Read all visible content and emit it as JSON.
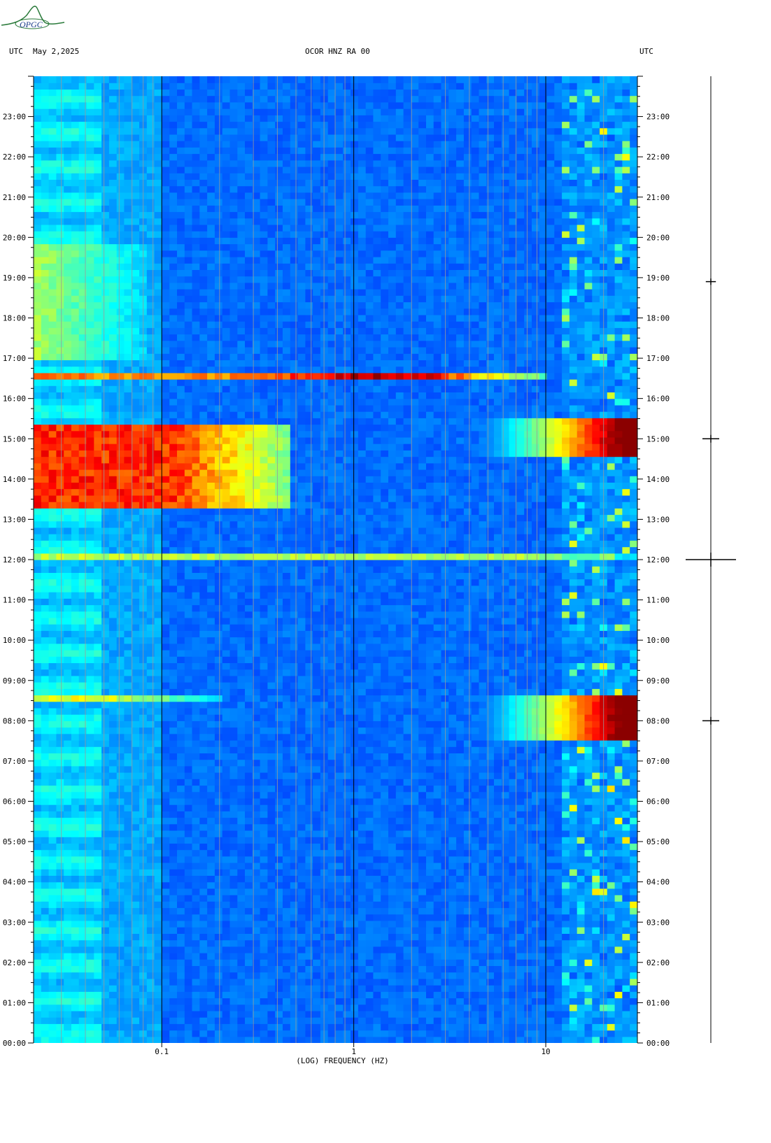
{
  "header": {
    "left_utc": "UTC",
    "date": "May 2,2025",
    "station": "OCOR HNZ RA 00",
    "right_utc": "UTC"
  },
  "logo": {
    "text": "OPGC",
    "icon": "seismic-wave-logo-icon",
    "color": "#2a7a3a"
  },
  "chart_data": {
    "type": "heatmap",
    "title": "OCOR HNZ RA 00",
    "xlabel": "(LOG) FREQUENCY (HZ)",
    "ylabel": "",
    "x_scale": "log",
    "xlim": [
      0.0215,
      30
    ],
    "ylim": [
      0,
      24
    ],
    "x_tick_labels": [
      {
        "value": 0.1,
        "label": "0.1"
      },
      {
        "value": 1,
        "label": "1"
      },
      {
        "value": 10,
        "label": "10"
      }
    ],
    "y_tick_labels": [
      {
        "value": 0,
        "label": "00:00"
      },
      {
        "value": 1,
        "label": "01:00"
      },
      {
        "value": 2,
        "label": "02:00"
      },
      {
        "value": 3,
        "label": "03:00"
      },
      {
        "value": 4,
        "label": "04:00"
      },
      {
        "value": 5,
        "label": "05:00"
      },
      {
        "value": 6,
        "label": "06:00"
      },
      {
        "value": 7,
        "label": "07:00"
      },
      {
        "value": 8,
        "label": "08:00"
      },
      {
        "value": 9,
        "label": "09:00"
      },
      {
        "value": 10,
        "label": "10:00"
      },
      {
        "value": 11,
        "label": "11:00"
      },
      {
        "value": 12,
        "label": "12:00"
      },
      {
        "value": 13,
        "label": "13:00"
      },
      {
        "value": 14,
        "label": "14:00"
      },
      {
        "value": 15,
        "label": "15:00"
      },
      {
        "value": 16,
        "label": "16:00"
      },
      {
        "value": 17,
        "label": "17:00"
      },
      {
        "value": 18,
        "label": "18:00"
      },
      {
        "value": 19,
        "label": "19:00"
      },
      {
        "value": 20,
        "label": "20:00"
      },
      {
        "value": 21,
        "label": "21:00"
      },
      {
        "value": 22,
        "label": "22:00"
      },
      {
        "value": 23,
        "label": "23:00"
      }
    ],
    "colormap": [
      "#00008b",
      "#0000ff",
      "#0080ff",
      "#00ffff",
      "#80ff80",
      "#ffff00",
      "#ff8000",
      "#ff0000",
      "#8b0000"
    ],
    "vertical_grid_freqs": [
      0.03,
      0.04,
      0.05,
      0.06,
      0.07,
      0.08,
      0.09,
      0.2,
      0.3,
      0.4,
      0.5,
      0.6,
      0.7,
      0.8,
      0.9,
      2,
      3,
      4,
      5,
      6,
      7,
      8,
      9,
      20
    ],
    "major_grid_freqs": [
      0.1,
      1,
      10
    ],
    "events": [
      {
        "name": "band-16:35",
        "start": 16.55,
        "end": 16.62,
        "f_max": 10,
        "peak_f": 1.4,
        "intensity": 0.95
      },
      {
        "name": "noise-14:00",
        "start": 13.25,
        "end": 15.4,
        "f_max": 0.45,
        "intensity": 0.9
      },
      {
        "name": "hf-14:45",
        "start": 14.5,
        "end": 15.45,
        "f_min": 4,
        "intensity": 1.0
      },
      {
        "name": "band-12:00",
        "start": 12.0,
        "end": 12.15,
        "f_max": 30,
        "intensity": 0.6
      },
      {
        "name": "hf-08:00",
        "start": 7.5,
        "end": 8.6,
        "f_min": 4,
        "intensity": 1.0
      },
      {
        "name": "line-08:35",
        "start": 8.55,
        "end": 8.62,
        "f_max": 0.2,
        "intensity": 0.65
      },
      {
        "name": "line-07:30",
        "start": 7.48,
        "end": 7.55,
        "f_max": 0.5,
        "intensity": 0.6
      },
      {
        "name": "lp-19:00",
        "start": 17.0,
        "end": 19.8,
        "f_max": 0.08,
        "intensity": 0.6
      }
    ],
    "trace_events": [
      {
        "time": 12.0,
        "amplitude": 1.0
      },
      {
        "time": 15.0,
        "amplitude": 0.25
      },
      {
        "time": 8.0,
        "amplitude": 0.25
      },
      {
        "time": 18.9,
        "amplitude": 0.1
      }
    ]
  }
}
